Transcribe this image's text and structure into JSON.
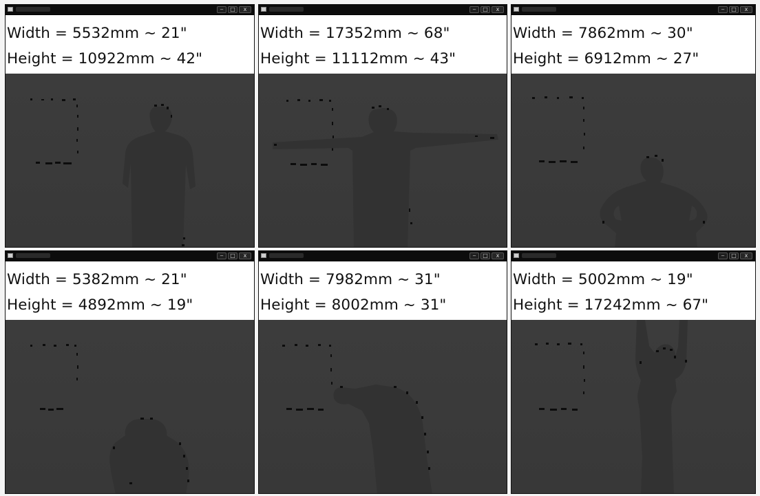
{
  "windows": [
    {
      "width_text": "Width = 5532mm ~ 21\"",
      "height_text": "Height = 10922mm ~ 42\""
    },
    {
      "width_text": "Width = 17352mm ~ 68\"",
      "height_text": "Height = 11112mm ~ 43\""
    },
    {
      "width_text": "Width = 7862mm ~ 30\"",
      "height_text": "Height = 6912mm ~ 27\""
    },
    {
      "width_text": "Width = 5382mm ~ 21\"",
      "height_text": "Height = 4892mm ~ 19\""
    },
    {
      "width_text": "Width = 7982mm ~ 31\"",
      "height_text": "Height = 8002mm ~ 31\""
    },
    {
      "width_text": "Width = 5002mm ~ 19\"",
      "height_text": "Height = 17242mm ~ 67\""
    }
  ],
  "controls": {
    "minimize": "‒",
    "maximize": "□",
    "close": "x"
  },
  "icons": {
    "app": "app-icon",
    "minimize": "minimize-icon",
    "maximize": "maximize-icon",
    "close": "close-icon"
  }
}
